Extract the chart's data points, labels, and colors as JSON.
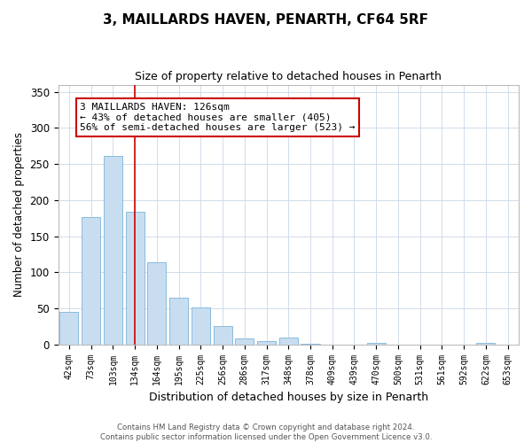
{
  "title": "3, MAILLARDS HAVEN, PENARTH, CF64 5RF",
  "subtitle": "Size of property relative to detached houses in Penarth",
  "xlabel": "Distribution of detached houses by size in Penarth",
  "ylabel": "Number of detached properties",
  "categories": [
    "42sqm",
    "73sqm",
    "103sqm",
    "134sqm",
    "164sqm",
    "195sqm",
    "225sqm",
    "256sqm",
    "286sqm",
    "317sqm",
    "348sqm",
    "378sqm",
    "409sqm",
    "439sqm",
    "470sqm",
    "500sqm",
    "531sqm",
    "561sqm",
    "592sqm",
    "622sqm",
    "653sqm"
  ],
  "values": [
    45,
    176,
    261,
    184,
    114,
    65,
    51,
    25,
    8,
    5,
    9,
    1,
    0,
    0,
    2,
    0,
    0,
    0,
    0,
    2,
    0
  ],
  "bar_color": "#c9ddf0",
  "bar_edge_color": "#7ab4d8",
  "marker_line_x_label": "134sqm",
  "marker_line_color": "#cc0000",
  "annotation_text": "3 MAILLARDS HAVEN: 126sqm\n← 43% of detached houses are smaller (405)\n56% of semi-detached houses are larger (523) →",
  "annotation_box_color": "#ffffff",
  "annotation_box_edge_color": "#cc0000",
  "ylim": [
    0,
    360
  ],
  "yticks": [
    0,
    50,
    100,
    150,
    200,
    250,
    300,
    350
  ],
  "footer_line1": "Contains HM Land Registry data © Crown copyright and database right 2024.",
  "footer_line2": "Contains public sector information licensed under the Open Government Licence v3.0.",
  "background_color": "#ffffff",
  "grid_color": "#d0dcea"
}
